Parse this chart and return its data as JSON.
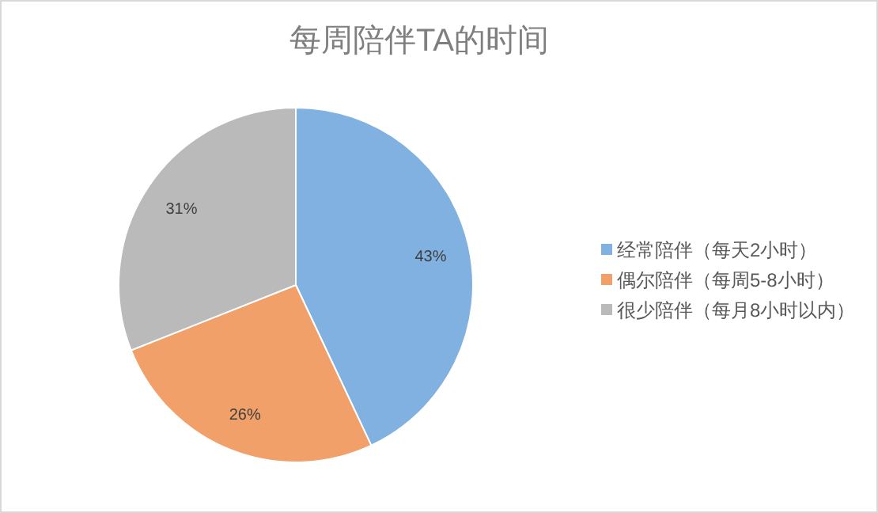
{
  "chart_data": {
    "type": "pie",
    "title": "每周陪伴TA的时间",
    "categories": [
      "经常陪伴（每天2小时）",
      "偶尔陪伴（每周5-8小时）",
      "很少陪伴（每月8小时以内）"
    ],
    "values": [
      43,
      26,
      31
    ],
    "colors": [
      "#80b1e0",
      "#f2a06a",
      "#bababa"
    ],
    "value_labels": [
      "43%",
      "26%",
      "31%"
    ],
    "legend": "right"
  }
}
